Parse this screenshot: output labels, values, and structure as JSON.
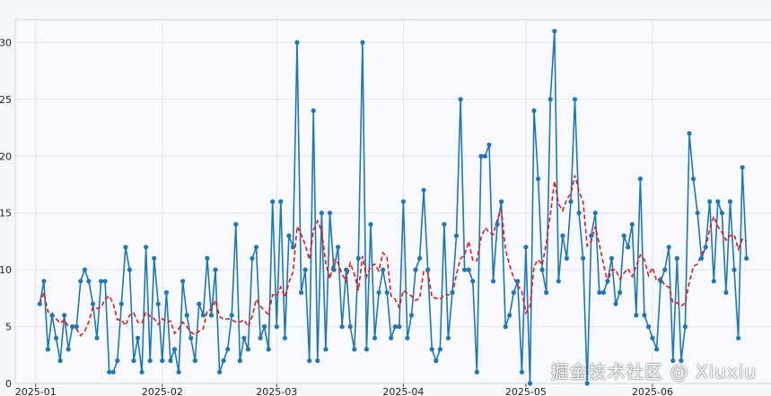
{
  "chart_data": {
    "type": "line",
    "title": "",
    "xlabel": "",
    "ylabel": "",
    "ylim": [
      0,
      32
    ],
    "xlim": [
      "2024-12-27",
      "2025-06-30"
    ],
    "grid": true,
    "x_tick_labels": [
      "2025-01",
      "2025-02",
      "2025-03",
      "2025-04",
      "2025-05",
      "2025-06"
    ],
    "x_tick_dates": [
      "2025-01-01",
      "2025-02-01",
      "2025-03-01",
      "2025-04-01",
      "2025-05-01",
      "2025-06-01"
    ],
    "y_ticks": [
      0,
      5,
      10,
      15,
      20,
      25,
      30
    ],
    "start_date": "2025-01-02",
    "series": [
      {
        "style": "solid line with circle markers",
        "color": "#1f77b4",
        "values": [
          7,
          9,
          3,
          6,
          4,
          2,
          6,
          3,
          5,
          5,
          9,
          10,
          9,
          7,
          4,
          9,
          9,
          1,
          1,
          2,
          7,
          12,
          10,
          2,
          4,
          1,
          12,
          2,
          11,
          7,
          2,
          8,
          2,
          3,
          1,
          9,
          6,
          4,
          2,
          7,
          6,
          11,
          6,
          10,
          1,
          2,
          3,
          6,
          14,
          2,
          4,
          3,
          11,
          12,
          4,
          5,
          3,
          16,
          5,
          16,
          4,
          13,
          12,
          30,
          8,
          10,
          2,
          24,
          2,
          15,
          3,
          15,
          10,
          12,
          5,
          10,
          5,
          3,
          11,
          30,
          3,
          14,
          4,
          8,
          10,
          8,
          4,
          5,
          5,
          16,
          4,
          6,
          10,
          11,
          17,
          10,
          3,
          2,
          3,
          14,
          4,
          8,
          13,
          25,
          10,
          10,
          9,
          1,
          20,
          20,
          21,
          9,
          14,
          16,
          5,
          6,
          8,
          9,
          1,
          12,
          0,
          24,
          18,
          10,
          8,
          25,
          31,
          9,
          13,
          11,
          16,
          25,
          15,
          11,
          0,
          13,
          15,
          8,
          8,
          9,
          11,
          7,
          8,
          13,
          12,
          14,
          6,
          18,
          6,
          5,
          4,
          3,
          9,
          10,
          12,
          2,
          11,
          2,
          5,
          22,
          18,
          15,
          11,
          12,
          16,
          9,
          16,
          15,
          8,
          16,
          10,
          4,
          19,
          11
        ]
      },
      {
        "style": "dashed line",
        "color": "#e3191c",
        "values": [
          7.0,
          8.0,
          6.3,
          6.2,
          5.7,
          5.3,
          5.6,
          5.0,
          5.1,
          4.8,
          4.2,
          4.6,
          5.4,
          6.7,
          6.6,
          6.7,
          7.4,
          7.7,
          7.0,
          5.6,
          5.6,
          5.1,
          6.0,
          6.2,
          5.4,
          5.3,
          6.3,
          5.9,
          5.7,
          5.2,
          5.7,
          5.4,
          5.5,
          4.4,
          4.8,
          5.4,
          5.0,
          4.5,
          4.3,
          4.6,
          4.8,
          6.4,
          6.5,
          7.3,
          5.9,
          5.6,
          5.7,
          5.6,
          5.4,
          5.4,
          5.6,
          5.0,
          5.9,
          7.4,
          6.8,
          6.4,
          6.1,
          7.8,
          7.7,
          8.5,
          7.6,
          8.9,
          9.8,
          13.8,
          13.1,
          12.2,
          10.9,
          13.5,
          14.3,
          13.4,
          10.6,
          9.2,
          10.9,
          10.6,
          9.6,
          9.0,
          10.6,
          9.6,
          8.2,
          11.2,
          9.4,
          10.3,
          10.5,
          9.9,
          11.5,
          11.1,
          7.7,
          7.4,
          6.7,
          8.2,
          7.9,
          7.7,
          7.3,
          7.5,
          9.9,
          9.8,
          7.6,
          7.5,
          7.4,
          7.8,
          7.8,
          7.8,
          9.6,
          11.0,
          11.3,
          12.5,
          10.8,
          10.8,
          12.8,
          13.7,
          13.3,
          13.1,
          14.4,
          15.3,
          11.8,
          10.4,
          9.3,
          8.6,
          8.1,
          6.2,
          6.8,
          10.3,
          10.9,
          10.4,
          12.4,
          14.9,
          17.8,
          15.8,
          15.2,
          16.2,
          16.7,
          18.3,
          16.9,
          16.0,
          12.1,
          12.5,
          13.8,
          12.2,
          10.5,
          8.9,
          10.0,
          10.0,
          9.2,
          9.7,
          10.1,
          9.4,
          10.3,
          11.3,
          10.9,
          9.5,
          10.2,
          9.0,
          9.3,
          8.6,
          8.5,
          7.1,
          7.1,
          6.8,
          7.1,
          8.9,
          10.3,
          10.5,
          11.4,
          11.9,
          13.6,
          14.7,
          13.8,
          13.3,
          12.6,
          13.0,
          13.1,
          11.8,
          12.7,
          12.5
        ]
      }
    ]
  },
  "watermark": "掘金技术社区 @ Xiuxiu"
}
